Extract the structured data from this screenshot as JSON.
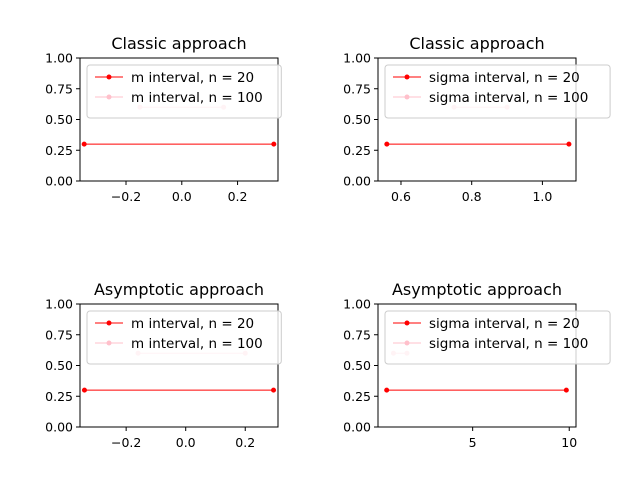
{
  "colors": {
    "series_a": "#ff0000",
    "series_b": "#ffc0cb"
  },
  "chart_data": [
    {
      "type": "line",
      "title": "Classic approach",
      "xlim": [
        -0.365,
        0.345
      ],
      "ylim": [
        0,
        1
      ],
      "xticks": [
        -0.2,
        0.0,
        0.2
      ],
      "xtick_labels": [
        "−0.2",
        "0.0",
        "0.2"
      ],
      "yticks": [
        0,
        0.25,
        0.5,
        0.75,
        1
      ],
      "ytick_labels": [
        "0.00",
        "0.25",
        "0.50",
        "0.75",
        "1.00"
      ],
      "legend": "top-left",
      "series": [
        {
          "name": "m interval, n = 20",
          "color": "#ff0000",
          "x": [
            -0.35,
            0.33
          ],
          "y": [
            0.3,
            0.3
          ]
        },
        {
          "name": "m interval, n = 100",
          "color": "#ffc0cb",
          "x": [
            -0.15,
            0.15
          ],
          "y": [
            0.6,
            0.6
          ]
        }
      ]
    },
    {
      "type": "line",
      "title": "Classic approach",
      "xlim": [
        0.535,
        1.095
      ],
      "ylim": [
        0,
        1
      ],
      "xticks": [
        0.6,
        0.8,
        1.0
      ],
      "xtick_labels": [
        "0.6",
        "0.8",
        "1.0"
      ],
      "yticks": [
        0,
        0.25,
        0.5,
        0.75,
        1
      ],
      "ytick_labels": [
        "0.00",
        "0.25",
        "0.50",
        "0.75",
        "1.00"
      ],
      "legend": "top-left",
      "series": [
        {
          "name": "sigma interval, n = 20",
          "color": "#ff0000",
          "x": [
            0.56,
            1.075
          ],
          "y": [
            0.3,
            0.3
          ]
        },
        {
          "name": "sigma interval, n = 100",
          "color": "#ffc0cb",
          "x": [
            0.75,
            0.9
          ],
          "y": [
            0.6,
            0.6
          ]
        }
      ]
    },
    {
      "type": "line",
      "title": "Asymptotic approach",
      "xlim": [
        -0.355,
        0.31
      ],
      "ylim": [
        0,
        1
      ],
      "xticks": [
        -0.2,
        0.0,
        0.2
      ],
      "xtick_labels": [
        "−0.2",
        "0.0",
        "0.2"
      ],
      "yticks": [
        0,
        0.25,
        0.5,
        0.75,
        1
      ],
      "ytick_labels": [
        "0.00",
        "0.25",
        "0.50",
        "0.75",
        "1.00"
      ],
      "legend": "top-left",
      "series": [
        {
          "name": "m interval, n = 20",
          "color": "#ff0000",
          "x": [
            -0.34,
            0.295
          ],
          "y": [
            0.3,
            0.3
          ]
        },
        {
          "name": "m interval, n = 100",
          "color": "#ffc0cb",
          "x": [
            -0.16,
            0.2
          ],
          "y": [
            0.6,
            0.6
          ]
        }
      ]
    },
    {
      "type": "line",
      "title": "Asymptotic approach",
      "xlim": [
        0.1,
        10.35
      ],
      "ylim": [
        0,
        1
      ],
      "xticks": [
        5,
        10
      ],
      "xtick_labels": [
        "5",
        "10"
      ],
      "yticks": [
        0,
        0.25,
        0.5,
        0.75,
        1
      ],
      "ytick_labels": [
        "0.00",
        "0.25",
        "0.50",
        "0.75",
        "1.00"
      ],
      "legend": "top-left",
      "series": [
        {
          "name": "sigma interval, n = 20",
          "color": "#ff0000",
          "x": [
            0.55,
            9.85
          ],
          "y": [
            0.3,
            0.3
          ]
        },
        {
          "name": "sigma interval, n = 100",
          "color": "#ffc0cb",
          "x": [
            0.9,
            1.6
          ],
          "y": [
            0.6,
            0.6
          ]
        }
      ]
    }
  ]
}
